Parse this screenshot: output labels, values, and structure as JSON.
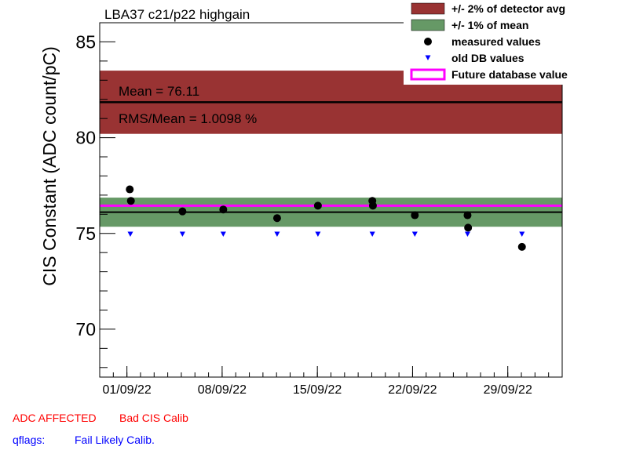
{
  "colors": {
    "detector_band": "#993333",
    "mean_band": "#669966",
    "future_line": "#ff00ff",
    "measured": "#000000",
    "old_db": "#0000ff",
    "flag_red": "#ff0000",
    "flag_blue": "#0000ff"
  },
  "chart_data": {
    "type": "scatter",
    "title": "LBA37 c21/p22 highgain",
    "xlabel": "",
    "ylabel": "CIS Constant (ADC count/pC)",
    "x_unit": "date",
    "xlim": [
      "2022-08-30T00:00",
      "2022-10-03T00:00"
    ],
    "ylim": [
      67.5,
      86
    ],
    "y_ticks": [
      70,
      75,
      80,
      85
    ],
    "x_ticks": [
      {
        "x": "2022-09-01",
        "label": "01/09/22"
      },
      {
        "x": "2022-09-08",
        "label": "08/09/22"
      },
      {
        "x": "2022-09-15",
        "label": "15/09/22"
      },
      {
        "x": "2022-09-22",
        "label": "22/09/22"
      },
      {
        "x": "2022-09-29",
        "label": "29/09/22"
      }
    ],
    "grid": false,
    "legend_position": "top-right",
    "legend": [
      {
        "label": "+/- 2% of detector avg",
        "kind": "band-detector"
      },
      {
        "label": "+/- 1% of mean",
        "kind": "band-mean"
      },
      {
        "label": "measured values",
        "kind": "marker-measured"
      },
      {
        "label": "old DB values",
        "kind": "marker-old"
      },
      {
        "label": "Future database value",
        "kind": "line-future"
      }
    ],
    "detector_avg": 81.85,
    "detector_band": [
      80.2,
      83.5
    ],
    "mean": 76.11,
    "mean_band": [
      75.35,
      76.87
    ],
    "future_db_value": 76.45,
    "stats": {
      "mean_text": "Mean = 76.11",
      "rms_text": "RMS/Mean = 1.0098 %"
    },
    "series": [
      {
        "name": "measured values",
        "points": [
          {
            "x": "2022-09-01T05:00",
            "y": 77.3
          },
          {
            "x": "2022-09-01T07:00",
            "y": 76.7
          },
          {
            "x": "2022-09-05T02:00",
            "y": 76.15
          },
          {
            "x": "2022-09-08T02:00",
            "y": 76.25
          },
          {
            "x": "2022-09-12T01:00",
            "y": 75.8
          },
          {
            "x": "2022-09-15T01:00",
            "y": 76.45
          },
          {
            "x": "2022-09-19T01:00",
            "y": 76.7
          },
          {
            "x": "2022-09-19T02:00",
            "y": 76.45
          },
          {
            "x": "2022-09-22T04:00",
            "y": 75.95
          },
          {
            "x": "2022-09-26T01:00",
            "y": 75.95
          },
          {
            "x": "2022-09-26T02:00",
            "y": 75.3
          },
          {
            "x": "2022-09-30T01:00",
            "y": 74.3
          }
        ]
      },
      {
        "name": "old DB values",
        "points": [
          {
            "x": "2022-09-01T06:00",
            "y": 74.95
          },
          {
            "x": "2022-09-05T02:00",
            "y": 74.95
          },
          {
            "x": "2022-09-08T02:00",
            "y": 74.95
          },
          {
            "x": "2022-09-12T01:00",
            "y": 74.95
          },
          {
            "x": "2022-09-15T01:00",
            "y": 74.95
          },
          {
            "x": "2022-09-19T01:00",
            "y": 74.95
          },
          {
            "x": "2022-09-22T04:00",
            "y": 74.95
          },
          {
            "x": "2022-09-26T01:00",
            "y": 74.95
          },
          {
            "x": "2022-09-30T01:00",
            "y": 74.95
          }
        ]
      }
    ]
  },
  "footer": {
    "adc_label": "ADC AFFECTED",
    "calib_label": "Bad CIS Calib",
    "qflags_label": "qflags:",
    "qflags_value": "Fail Likely Calib."
  }
}
